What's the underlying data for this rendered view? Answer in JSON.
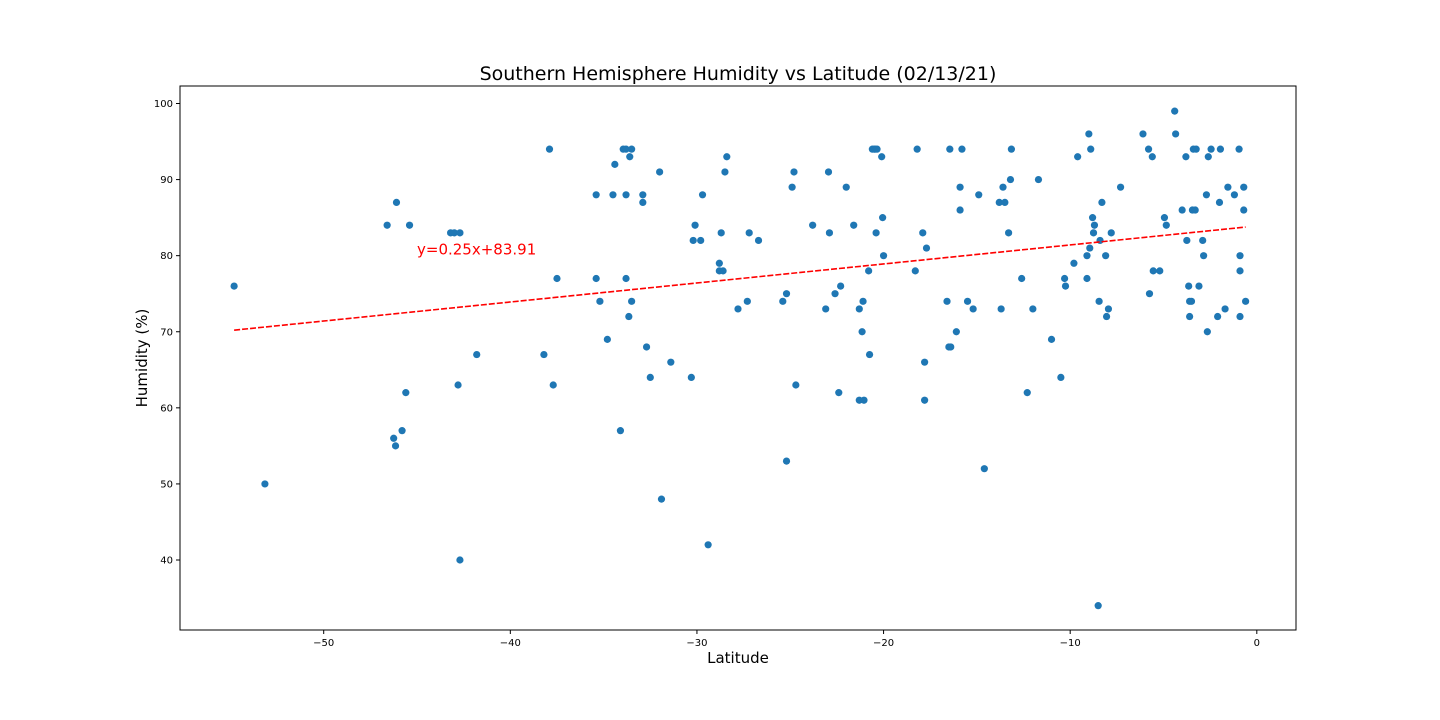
{
  "chart_data": {
    "type": "scatter",
    "title": "Southern Hemisphere Humidity vs Latitude (02/13/21)",
    "xlabel": "Latitude",
    "ylabel": "Humidity (%)",
    "xlim": [
      -57.7,
      2.1
    ],
    "ylim": [
      30.8,
      102.3
    ],
    "xticks": [
      -50,
      -40,
      -30,
      -20,
      -10,
      0
    ],
    "yticks": [
      40,
      50,
      60,
      70,
      80,
      90,
      100
    ],
    "xtick_labels": [
      "−50",
      "−40",
      "−30",
      "−20",
      "−10",
      "0"
    ],
    "ytick_labels": [
      "40",
      "50",
      "60",
      "70",
      "80",
      "90",
      "100"
    ],
    "grid": false,
    "point_color": "#1f77b4",
    "regression": {
      "slope": 0.25,
      "intercept": 83.91,
      "x_range": [
        -54.8,
        -0.6
      ],
      "color": "#ff0000",
      "label": "y=0.25x+83.91",
      "label_position": [
        -45,
        80
      ]
    },
    "points": [
      [
        -54.8,
        76
      ],
      [
        -53.15,
        50
      ],
      [
        -46.6,
        84
      ],
      [
        -46.25,
        56
      ],
      [
        -46.15,
        55
      ],
      [
        -46.1,
        87
      ],
      [
        -45.8,
        57
      ],
      [
        -45.6,
        62
      ],
      [
        -45.4,
        84
      ],
      [
        -43.2,
        83
      ],
      [
        -43.0,
        83
      ],
      [
        -42.8,
        63
      ],
      [
        -42.7,
        83
      ],
      [
        -42.7,
        40
      ],
      [
        -41.8,
        67
      ],
      [
        -38.2,
        67
      ],
      [
        -37.9,
        94
      ],
      [
        -37.7,
        63
      ],
      [
        -37.5,
        77
      ],
      [
        -35.4,
        88
      ],
      [
        -35.4,
        77
      ],
      [
        -35.2,
        74
      ],
      [
        -34.8,
        69
      ],
      [
        -34.5,
        88
      ],
      [
        -34.4,
        92
      ],
      [
        -34.1,
        57
      ],
      [
        -33.95,
        94
      ],
      [
        -33.8,
        94
      ],
      [
        -33.8,
        88
      ],
      [
        -33.8,
        77
      ],
      [
        -33.65,
        72
      ],
      [
        -33.6,
        93
      ],
      [
        -33.5,
        94
      ],
      [
        -33.5,
        74
      ],
      [
        -32.9,
        88
      ],
      [
        -32.9,
        87
      ],
      [
        -32.7,
        68
      ],
      [
        -32.5,
        64
      ],
      [
        -32.0,
        91
      ],
      [
        -31.9,
        48
      ],
      [
        -31.4,
        66
      ],
      [
        -30.3,
        64
      ],
      [
        -30.2,
        82
      ],
      [
        -30.1,
        84
      ],
      [
        -29.8,
        82
      ],
      [
        -29.7,
        88
      ],
      [
        -29.4,
        42
      ],
      [
        -28.8,
        78
      ],
      [
        -28.8,
        79
      ],
      [
        -28.7,
        83
      ],
      [
        -28.6,
        78
      ],
      [
        -28.5,
        91
      ],
      [
        -28.4,
        93
      ],
      [
        -27.8,
        73
      ],
      [
        -27.3,
        74
      ],
      [
        -27.2,
        83
      ],
      [
        -26.7,
        82
      ],
      [
        -25.4,
        74
      ],
      [
        -25.2,
        75
      ],
      [
        -25.2,
        53
      ],
      [
        -24.9,
        89
      ],
      [
        -24.8,
        91
      ],
      [
        -24.7,
        63
      ],
      [
        -23.8,
        84
      ],
      [
        -23.1,
        73
      ],
      [
        -22.95,
        91
      ],
      [
        -22.9,
        83
      ],
      [
        -22.6,
        75
      ],
      [
        -22.4,
        62
      ],
      [
        -22.3,
        76
      ],
      [
        -22.0,
        89
      ],
      [
        -21.6,
        84
      ],
      [
        -21.3,
        73
      ],
      [
        -21.3,
        61
      ],
      [
        -21.15,
        70
      ],
      [
        -21.1,
        74
      ],
      [
        -21.05,
        61
      ],
      [
        -20.8,
        78
      ],
      [
        -20.75,
        67
      ],
      [
        -20.6,
        94
      ],
      [
        -20.5,
        94
      ],
      [
        -20.45,
        94
      ],
      [
        -20.4,
        83
      ],
      [
        -20.35,
        94
      ],
      [
        -20.1,
        93
      ],
      [
        -20.05,
        85
      ],
      [
        -20.0,
        80
      ],
      [
        -18.3,
        78
      ],
      [
        -18.2,
        94
      ],
      [
        -17.9,
        83
      ],
      [
        -17.8,
        66
      ],
      [
        -17.8,
        61
      ],
      [
        -17.7,
        81
      ],
      [
        -16.6,
        74
      ],
      [
        -16.5,
        68
      ],
      [
        -16.4,
        68
      ],
      [
        -16.45,
        94
      ],
      [
        -16.1,
        70
      ],
      [
        -15.9,
        89
      ],
      [
        -15.9,
        86
      ],
      [
        -15.8,
        94
      ],
      [
        -15.5,
        74
      ],
      [
        -15.2,
        73
      ],
      [
        -14.9,
        88
      ],
      [
        -14.6,
        52
      ],
      [
        -13.8,
        87
      ],
      [
        -13.7,
        73
      ],
      [
        -13.6,
        89
      ],
      [
        -13.5,
        87
      ],
      [
        -13.3,
        83
      ],
      [
        -13.2,
        90
      ],
      [
        -13.15,
        94
      ],
      [
        -12.6,
        77
      ],
      [
        -12.3,
        62
      ],
      [
        -12.0,
        73
      ],
      [
        -11.7,
        90
      ],
      [
        -11.0,
        69
      ],
      [
        -10.5,
        64
      ],
      [
        -10.3,
        77
      ],
      [
        -10.25,
        76
      ],
      [
        -9.8,
        79
      ],
      [
        -9.6,
        93
      ],
      [
        -9.1,
        80
      ],
      [
        -9.1,
        77
      ],
      [
        -9.0,
        96
      ],
      [
        -8.95,
        81
      ],
      [
        -8.9,
        94
      ],
      [
        -8.8,
        85
      ],
      [
        -8.75,
        83
      ],
      [
        -8.7,
        84
      ],
      [
        -8.5,
        34
      ],
      [
        -8.45,
        74
      ],
      [
        -8.4,
        82
      ],
      [
        -8.3,
        87
      ],
      [
        -8.1,
        80
      ],
      [
        -8.05,
        72
      ],
      [
        -7.95,
        73
      ],
      [
        -7.8,
        83
      ],
      [
        -7.3,
        89
      ],
      [
        -6.1,
        96
      ],
      [
        -5.8,
        94
      ],
      [
        -5.75,
        75
      ],
      [
        -5.6,
        93
      ],
      [
        -5.55,
        78
      ],
      [
        -5.2,
        78
      ],
      [
        -4.95,
        85
      ],
      [
        -4.85,
        84
      ],
      [
        -4.4,
        99
      ],
      [
        -4.35,
        96
      ],
      [
        -4.0,
        86
      ],
      [
        -3.8,
        93
      ],
      [
        -3.75,
        82
      ],
      [
        -3.65,
        76
      ],
      [
        -3.6,
        74
      ],
      [
        -3.6,
        72
      ],
      [
        -3.5,
        74
      ],
      [
        -3.45,
        86
      ],
      [
        -3.4,
        94
      ],
      [
        -3.3,
        86
      ],
      [
        -3.25,
        94
      ],
      [
        -3.1,
        76
      ],
      [
        -2.9,
        82
      ],
      [
        -2.85,
        80
      ],
      [
        -2.7,
        88
      ],
      [
        -2.65,
        70
      ],
      [
        -2.6,
        93
      ],
      [
        -2.45,
        94
      ],
      [
        -2.1,
        72
      ],
      [
        -2.0,
        87
      ],
      [
        -1.95,
        94
      ],
      [
        -1.7,
        73
      ],
      [
        -1.55,
        89
      ],
      [
        -1.2,
        88
      ],
      [
        -0.95,
        94
      ],
      [
        -0.9,
        80
      ],
      [
        -0.9,
        78
      ],
      [
        -0.9,
        72
      ],
      [
        -0.7,
        89
      ],
      [
        -0.7,
        86
      ],
      [
        -0.6,
        74
      ]
    ]
  }
}
